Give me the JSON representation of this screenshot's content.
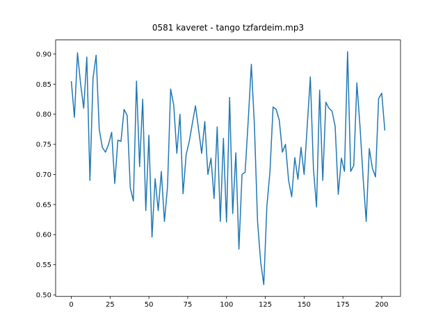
{
  "chart_data": {
    "type": "line",
    "title": "0581 kaveret - tango tzfardeim.mp3",
    "x": [
      0,
      2,
      4,
      6,
      8,
      10,
      12,
      14,
      16,
      18,
      20,
      22,
      24,
      26,
      28,
      30,
      32,
      34,
      36,
      38,
      40,
      42,
      44,
      46,
      48,
      50,
      52,
      54,
      56,
      58,
      60,
      62,
      64,
      66,
      68,
      70,
      72,
      74,
      76,
      78,
      80,
      82,
      84,
      86,
      88,
      90,
      92,
      94,
      96,
      98,
      100,
      102,
      104,
      106,
      108,
      110,
      112,
      114,
      116,
      118,
      120,
      122,
      124,
      126,
      128,
      130,
      132,
      134,
      136,
      138,
      140,
      142,
      144,
      146,
      148,
      150,
      152,
      154,
      156,
      158,
      160,
      162,
      164,
      166,
      168,
      170,
      172,
      174,
      176,
      178,
      180,
      182,
      184,
      186,
      188,
      190,
      192,
      194,
      196,
      198,
      200,
      202
    ],
    "series": [
      {
        "color": "#1f77b4",
        "values": [
          0.855,
          0.795,
          0.902,
          0.85,
          0.81,
          0.895,
          0.69,
          0.86,
          0.898,
          0.775,
          0.745,
          0.737,
          0.75,
          0.77,
          0.685,
          0.757,
          0.755,
          0.808,
          0.798,
          0.678,
          0.656,
          0.855,
          0.713,
          0.825,
          0.64,
          0.765,
          0.596,
          0.693,
          0.64,
          0.705,
          0.622,
          0.68,
          0.842,
          0.815,
          0.735,
          0.8,
          0.668,
          0.733,
          0.755,
          0.785,
          0.814,
          0.775,
          0.735,
          0.788,
          0.7,
          0.727,
          0.66,
          0.779,
          0.622,
          0.76,
          0.621,
          0.828,
          0.635,
          0.736,
          0.576,
          0.7,
          0.704,
          0.79,
          0.883,
          0.78,
          0.622,
          0.555,
          0.517,
          0.647,
          0.705,
          0.812,
          0.808,
          0.79,
          0.737,
          0.75,
          0.69,
          0.663,
          0.728,
          0.692,
          0.745,
          0.7,
          0.78,
          0.862,
          0.71,
          0.646,
          0.84,
          0.69,
          0.82,
          0.81,
          0.805,
          0.78,
          0.667,
          0.727,
          0.705,
          0.904,
          0.705,
          0.715,
          0.852,
          0.78,
          0.695,
          0.622,
          0.743,
          0.71,
          0.696,
          0.826,
          0.835,
          0.773
        ]
      }
    ],
    "xlim": [
      -10.1,
      212.1
    ],
    "xticks": [
      0,
      25,
      50,
      75,
      100,
      125,
      150,
      175,
      200
    ],
    "ylim": [
      0.4975,
      0.9234
    ],
    "yticks": [
      {
        "value": 0.5,
        "label": "0.50"
      },
      0.55,
      {
        "value": 0.6,
        "label": "0.60"
      },
      0.65,
      {
        "value": 0.7,
        "label": "0.70"
      },
      0.75,
      {
        "value": 0.8,
        "label": "0.80"
      },
      0.85,
      {
        "value": 0.9,
        "label": "0.90"
      }
    ]
  }
}
